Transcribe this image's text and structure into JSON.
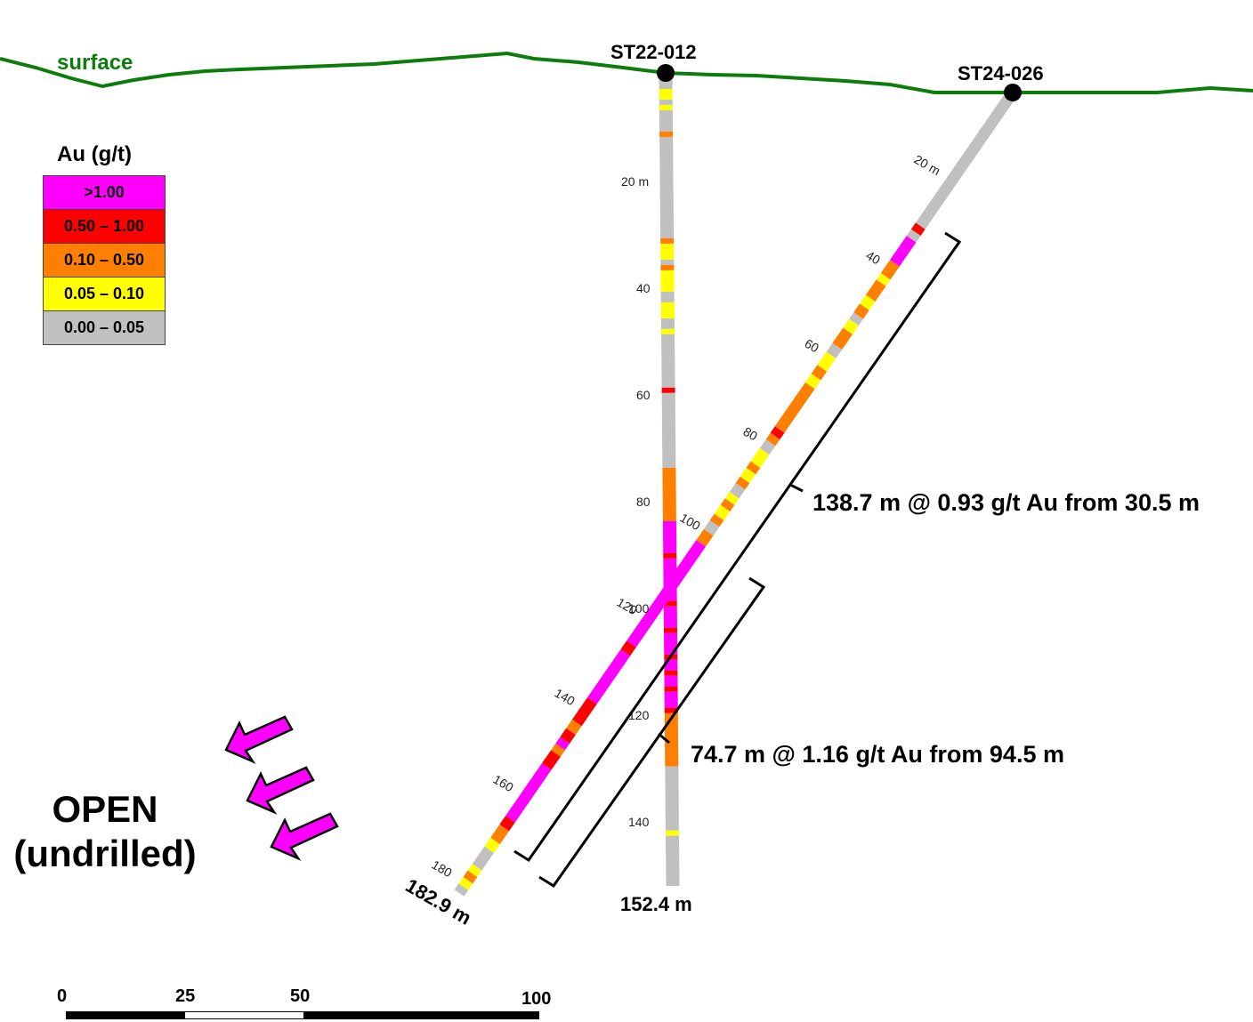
{
  "surface_label": "surface",
  "legend": {
    "title": "Au (g/t)",
    "items": [
      {
        "label": ">1.00",
        "color": "#ff00ff"
      },
      {
        "label": "0.50 – 1.00",
        "color": "#ff0000"
      },
      {
        "label": "0.10 – 0.50",
        "color": "#ff8000"
      },
      {
        "label": "0.05 – 0.10",
        "color": "#ffff00"
      },
      {
        "label": "0.00 – 0.05",
        "color": "#c0c0c0"
      }
    ]
  },
  "holes": [
    {
      "name": "ST22-012",
      "end_label": "152.4 m",
      "depth_ticks": [
        "20 m",
        "40",
        "60",
        "80",
        "100",
        "120",
        "140"
      ],
      "assay_intervals": [
        {
          "from": 0,
          "to": 3,
          "grade": "gray"
        },
        {
          "from": 3,
          "to": 5,
          "grade": "yellow"
        },
        {
          "from": 5,
          "to": 6,
          "grade": "gray"
        },
        {
          "from": 6,
          "to": 7,
          "grade": "yellow"
        },
        {
          "from": 7,
          "to": 11,
          "grade": "gray"
        },
        {
          "from": 11,
          "to": 12,
          "grade": "orange"
        },
        {
          "from": 12,
          "to": 31,
          "grade": "gray"
        },
        {
          "from": 31,
          "to": 32,
          "grade": "orange"
        },
        {
          "from": 32,
          "to": 35,
          "grade": "yellow"
        },
        {
          "from": 35,
          "to": 36,
          "grade": "gray"
        },
        {
          "from": 36,
          "to": 37,
          "grade": "orange"
        },
        {
          "from": 37,
          "to": 41,
          "grade": "yellow"
        },
        {
          "from": 41,
          "to": 43,
          "grade": "gray"
        },
        {
          "from": 43,
          "to": 46,
          "grade": "yellow"
        },
        {
          "from": 46,
          "to": 48,
          "grade": "gray"
        },
        {
          "from": 48,
          "to": 49,
          "grade": "yellow"
        },
        {
          "from": 49,
          "to": 59,
          "grade": "gray"
        },
        {
          "from": 59,
          "to": 60,
          "grade": "red"
        },
        {
          "from": 60,
          "to": 74,
          "grade": "gray"
        },
        {
          "from": 74,
          "to": 84,
          "grade": "orange"
        },
        {
          "from": 84,
          "to": 90,
          "grade": "magenta"
        },
        {
          "from": 90,
          "to": 91,
          "grade": "red"
        },
        {
          "from": 91,
          "to": 99,
          "grade": "magenta"
        },
        {
          "from": 99,
          "to": 100,
          "grade": "red"
        },
        {
          "from": 100,
          "to": 104,
          "grade": "magenta"
        },
        {
          "from": 104,
          "to": 105,
          "grade": "red"
        },
        {
          "from": 105,
          "to": 109,
          "grade": "magenta"
        },
        {
          "from": 109,
          "to": 110,
          "grade": "red"
        },
        {
          "from": 110,
          "to": 112,
          "grade": "magenta"
        },
        {
          "from": 112,
          "to": 113,
          "grade": "red"
        },
        {
          "from": 113,
          "to": 115,
          "grade": "magenta"
        },
        {
          "from": 115,
          "to": 116,
          "grade": "red"
        },
        {
          "from": 116,
          "to": 119,
          "grade": "magenta"
        },
        {
          "from": 119,
          "to": 120,
          "grade": "red"
        },
        {
          "from": 120,
          "to": 130,
          "grade": "orange"
        },
        {
          "from": 130,
          "to": 142,
          "grade": "gray"
        },
        {
          "from": 142,
          "to": 143,
          "grade": "yellow"
        },
        {
          "from": 143,
          "to": 152.4,
          "grade": "gray"
        }
      ]
    },
    {
      "name": "ST24-026",
      "end_label": "182.9 m",
      "depth_ticks": [
        "20 m",
        "40",
        "60",
        "80",
        "100",
        "120",
        "140",
        "160",
        "180"
      ],
      "assay_intervals": [
        {
          "from": 0,
          "to": 29,
          "grade": "gray"
        },
        {
          "from": 29,
          "to": 30.5,
          "grade": "gray"
        },
        {
          "from": 30.5,
          "to": 32,
          "grade": "red"
        },
        {
          "from": 32,
          "to": 33.5,
          "grade": "gray"
        },
        {
          "from": 33.5,
          "to": 36,
          "grade": "magenta"
        },
        {
          "from": 36,
          "to": 39,
          "grade": "magenta"
        },
        {
          "from": 39,
          "to": 42,
          "grade": "orange"
        },
        {
          "from": 42,
          "to": 43.5,
          "grade": "yellow"
        },
        {
          "from": 43.5,
          "to": 47,
          "grade": "orange"
        },
        {
          "from": 47,
          "to": 49,
          "grade": "yellow"
        },
        {
          "from": 49,
          "to": 51,
          "grade": "orange"
        },
        {
          "from": 51,
          "to": 52.5,
          "grade": "gray"
        },
        {
          "from": 52.5,
          "to": 54.5,
          "grade": "yellow"
        },
        {
          "from": 54.5,
          "to": 58,
          "grade": "orange"
        },
        {
          "from": 58,
          "to": 60,
          "grade": "gray"
        },
        {
          "from": 60,
          "to": 63,
          "grade": "yellow"
        },
        {
          "from": 63,
          "to": 65,
          "grade": "orange"
        },
        {
          "from": 65,
          "to": 67,
          "grade": "yellow"
        },
        {
          "from": 67,
          "to": 77,
          "grade": "orange"
        },
        {
          "from": 77,
          "to": 78.5,
          "grade": "red"
        },
        {
          "from": 78.5,
          "to": 80,
          "grade": "orange"
        },
        {
          "from": 80,
          "to": 82,
          "grade": "gray"
        },
        {
          "from": 82,
          "to": 85,
          "grade": "yellow"
        },
        {
          "from": 85,
          "to": 86.5,
          "grade": "orange"
        },
        {
          "from": 86.5,
          "to": 88.5,
          "grade": "yellow"
        },
        {
          "from": 88.5,
          "to": 90,
          "grade": "orange"
        },
        {
          "from": 90,
          "to": 92,
          "grade": "gray"
        },
        {
          "from": 92,
          "to": 93.5,
          "grade": "yellow"
        },
        {
          "from": 93.5,
          "to": 95,
          "grade": "orange"
        },
        {
          "from": 95,
          "to": 97,
          "grade": "yellow"
        },
        {
          "from": 97,
          "to": 98.5,
          "grade": "orange"
        },
        {
          "from": 98.5,
          "to": 100.5,
          "grade": "gray"
        },
        {
          "from": 100.5,
          "to": 103,
          "grade": "orange"
        },
        {
          "from": 103,
          "to": 126,
          "grade": "magenta"
        },
        {
          "from": 126,
          "to": 128,
          "grade": "red"
        },
        {
          "from": 128,
          "to": 139,
          "grade": "magenta"
        },
        {
          "from": 139,
          "to": 144,
          "grade": "red"
        },
        {
          "from": 144,
          "to": 146,
          "grade": "orange"
        },
        {
          "from": 146,
          "to": 148,
          "grade": "red"
        },
        {
          "from": 148,
          "to": 149.5,
          "grade": "magenta"
        },
        {
          "from": 149.5,
          "to": 151,
          "grade": "orange"
        },
        {
          "from": 151,
          "to": 154,
          "grade": "red"
        },
        {
          "from": 154,
          "to": 166,
          "grade": "magenta"
        },
        {
          "from": 166,
          "to": 168,
          "grade": "red"
        },
        {
          "from": 168,
          "to": 171,
          "grade": "orange"
        },
        {
          "from": 171,
          "to": 173,
          "grade": "yellow"
        },
        {
          "from": 173,
          "to": 175,
          "grade": "gray"
        },
        {
          "from": 175,
          "to": 177,
          "grade": "gray"
        },
        {
          "from": 177,
          "to": 178.5,
          "grade": "yellow"
        },
        {
          "from": 178.5,
          "to": 180,
          "grade": "orange"
        },
        {
          "from": 180,
          "to": 181.5,
          "grade": "yellow"
        },
        {
          "from": 181.5,
          "to": 182.9,
          "grade": "gray"
        }
      ]
    }
  ],
  "intercepts": [
    {
      "text": "138.7 m @ 0.93 g/t Au from 30.5 m"
    },
    {
      "text": "74.7 m @ 1.16 g/t Au from 94.5 m"
    }
  ],
  "open_label": [
    "OPEN",
    "(undrilled)"
  ],
  "scale_bar": {
    "ticks": [
      "0",
      "25",
      "50",
      "100"
    ]
  },
  "colors": {
    "surface": "#0a7d0a",
    "magenta": "#ff00ff",
    "red": "#ff0000",
    "orange": "#ff8000",
    "yellow": "#ffff00",
    "gray": "#c0c0c0",
    "arrow": "#ff00ff"
  }
}
